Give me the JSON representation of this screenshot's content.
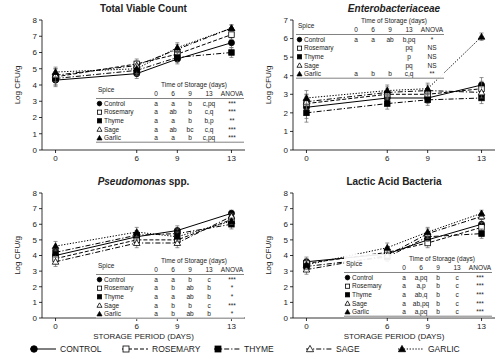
{
  "chart_data": [
    {
      "type": "line",
      "title": "Total Viable Count",
      "y_label": "Log CFU/g",
      "x": [
        0,
        6,
        9,
        13
      ],
      "xlim": [
        -1,
        14
      ],
      "xticks": [
        0,
        6,
        9,
        13
      ],
      "ylim": [
        0,
        8
      ],
      "yticks": [
        0,
        1,
        2,
        3,
        4,
        5,
        6,
        7,
        8
      ],
      "legend": "bottom",
      "series": [
        {
          "name": "CONTROL",
          "marker": "circle",
          "line_style": "solid",
          "values": [
            4.3,
            4.7,
            5.6,
            6.6
          ],
          "errors": [
            0.4,
            0.3,
            0.3,
            0.3
          ]
        },
        {
          "name": "ROSEMARY",
          "marker": "square-open",
          "line_style": "dashed",
          "values": [
            4.5,
            5.3,
            5.9,
            7.1
          ],
          "errors": [
            0.5,
            0.3,
            0.3,
            0.3
          ]
        },
        {
          "name": "THYME",
          "marker": "square",
          "line_style": "dashdot",
          "values": [
            4.4,
            4.9,
            5.7,
            6.0
          ],
          "errors": [
            0.4,
            0.3,
            0.3,
            0.3
          ]
        },
        {
          "name": "SAGE",
          "marker": "triangle-open",
          "line_style": "dashdot",
          "values": [
            4.6,
            5.2,
            6.2,
            7.5
          ],
          "errors": [
            0.4,
            0.3,
            0.3,
            0.2
          ]
        },
        {
          "name": "GARLIC",
          "marker": "triangle",
          "line_style": "dotted",
          "values": [
            4.8,
            5.0,
            6.3,
            7.5
          ],
          "errors": [
            0.3,
            0.3,
            0.3,
            0.2
          ]
        }
      ],
      "table": {
        "header": [
          "Spice",
          "Time of Storage (days)"
        ],
        "columns": [
          "0",
          "6",
          "9",
          "13",
          "ANOVA"
        ],
        "rows": [
          [
            "Control",
            "a",
            "a",
            "b",
            "c,pq",
            "***"
          ],
          [
            "Rosemary",
            "a",
            "ab",
            "b",
            "c,q",
            "***"
          ],
          [
            "Thyme",
            "a",
            "a",
            "b",
            "b,p",
            "**"
          ],
          [
            "Sage",
            "a",
            "ab",
            "bc",
            "c,q",
            "***"
          ],
          [
            "Garlic",
            "a",
            "a",
            "b",
            "c,pq",
            "***"
          ]
        ]
      }
    },
    {
      "type": "line",
      "title": "Enterobacteriaceae",
      "y_label": "Log CFU/g",
      "x": [
        0,
        6,
        9,
        13
      ],
      "xlim": [
        -1,
        14
      ],
      "xticks": [
        0,
        6,
        9,
        13
      ],
      "ylim": [
        0,
        7
      ],
      "yticks": [
        0,
        1,
        2,
        3,
        4,
        5,
        6,
        7
      ],
      "series": [
        {
          "marker": "circle",
          "line_style": "solid",
          "values": [
            2.3,
            2.8,
            2.8,
            3.5
          ],
          "errors": [
            0.6,
            0.3,
            0.3,
            0.4
          ]
        },
        {
          "marker": "square-open",
          "line_style": "dashed",
          "values": [
            2.5,
            3.0,
            3.0,
            3.3
          ],
          "errors": [
            0.5,
            0.3,
            0.3,
            0.4
          ]
        },
        {
          "marker": "square",
          "line_style": "dashdot",
          "values": [
            2.0,
            2.5,
            2.7,
            2.8
          ],
          "errors": [
            0.5,
            0.3,
            0.3,
            0.3
          ]
        },
        {
          "marker": "triangle-open",
          "line_style": "dashdot",
          "values": [
            2.6,
            3.1,
            3.2,
            3.1
          ],
          "errors": [
            0.4,
            0.3,
            0.3,
            0.3
          ]
        },
        {
          "marker": "triangle",
          "line_style": "dotted",
          "values": [
            2.8,
            3.2,
            3.3,
            6.1
          ],
          "errors": [
            0.4,
            0.3,
            0.3,
            0.2
          ]
        }
      ],
      "table": {
        "header": [
          "Spice",
          "Time of Storage (days)"
        ],
        "columns": [
          "0",
          "6",
          "9",
          "13",
          "ANOVA"
        ],
        "rows": [
          [
            "Control",
            "a",
            "a",
            "ab",
            "b,pq",
            "*"
          ],
          [
            "Rosemary",
            null,
            null,
            null,
            "pq",
            "NS"
          ],
          [
            "Thyme",
            null,
            null,
            null,
            "p",
            "NS"
          ],
          [
            "Sage",
            null,
            null,
            null,
            "pq",
            "NS"
          ],
          [
            "Garlic",
            "a",
            "b",
            "b",
            "c,q",
            "**"
          ]
        ]
      }
    },
    {
      "type": "line",
      "title": "Pseudomonas spp.",
      "y_label": "Log CFU/g",
      "x_label": "STORAGE PERIOD (DAYS)",
      "x": [
        0,
        6,
        9,
        13
      ],
      "xlim": [
        -1,
        14
      ],
      "xticks": [
        0,
        6,
        9,
        13
      ],
      "ylim": [
        0,
        8
      ],
      "yticks": [
        0,
        1,
        2,
        3,
        4,
        5,
        6,
        7,
        8
      ],
      "series": [
        {
          "marker": "circle",
          "line_style": "solid",
          "values": [
            4.0,
            5.2,
            5.6,
            6.7
          ],
          "errors": [
            0.3,
            0.3,
            0.3,
            0.2
          ]
        },
        {
          "marker": "square-open",
          "line_style": "dashed",
          "values": [
            3.8,
            5.0,
            5.0,
            6.3
          ],
          "errors": [
            0.3,
            0.3,
            0.3,
            0.3
          ]
        },
        {
          "marker": "square",
          "line_style": "dashdot",
          "values": [
            4.2,
            5.3,
            5.4,
            6.0
          ],
          "errors": [
            0.3,
            0.3,
            0.3,
            0.3
          ]
        },
        {
          "marker": "triangle-open",
          "line_style": "dashdot",
          "values": [
            3.6,
            4.8,
            4.8,
            6.5
          ],
          "errors": [
            0.3,
            0.3,
            0.3,
            0.2
          ]
        },
        {
          "marker": "triangle",
          "line_style": "dotted",
          "values": [
            4.6,
            5.5,
            5.2,
            6.2
          ],
          "errors": [
            0.3,
            0.3,
            0.3,
            0.2
          ]
        }
      ],
      "table": {
        "header": [
          "Spice",
          "Time of Storage (days)"
        ],
        "columns": [
          "0",
          "6",
          "9",
          "13",
          "ANOVA"
        ],
        "rows": [
          [
            "Control",
            "a",
            "a",
            "b",
            "c",
            "***"
          ],
          [
            "Rosemary",
            "a",
            "b",
            "ab",
            "b",
            "*"
          ],
          [
            "Thyme",
            "a",
            "a",
            "ab",
            "b",
            "*"
          ],
          [
            "Sage",
            "a",
            "b",
            "b",
            "c",
            "***"
          ],
          [
            "Garlic",
            "a",
            "b",
            "ab",
            "b",
            "*"
          ]
        ]
      }
    },
    {
      "type": "line",
      "title": "Lactic Acid Bacteria",
      "y_label": "Log CFU/g",
      "x_label": "STORAGE PERIOD (DAYS)",
      "x": [
        0,
        6,
        9,
        13
      ],
      "xlim": [
        -1,
        14
      ],
      "xticks": [
        0,
        6,
        9,
        13
      ],
      "ylim": [
        0,
        8
      ],
      "yticks": [
        0,
        1,
        2,
        3,
        4,
        5,
        6,
        7,
        8
      ],
      "series": [
        {
          "marker": "circle",
          "line_style": "solid",
          "values": [
            3.6,
            4.1,
            5.0,
            6.0
          ],
          "errors": [
            0.3,
            0.3,
            0.3,
            0.3
          ]
        },
        {
          "marker": "square-open",
          "line_style": "dashed",
          "values": [
            3.5,
            4.2,
            4.8,
            5.8
          ],
          "errors": [
            0.3,
            0.3,
            0.3,
            0.3
          ]
        },
        {
          "marker": "square",
          "line_style": "dashdot",
          "values": [
            3.3,
            3.9,
            5.2,
            5.4
          ],
          "errors": [
            0.3,
            0.3,
            0.3,
            0.3
          ]
        },
        {
          "marker": "triangle-open",
          "line_style": "dashdot",
          "values": [
            3.1,
            4.0,
            5.4,
            6.5
          ],
          "errors": [
            0.3,
            0.3,
            0.3,
            0.2
          ]
        },
        {
          "marker": "triangle",
          "line_style": "dotted",
          "values": [
            3.4,
            4.5,
            5.5,
            6.7
          ],
          "errors": [
            0.3,
            0.3,
            0.3,
            0.2
          ]
        }
      ],
      "table": {
        "header": [
          "Spice",
          "Time of Storage (days)"
        ],
        "columns": [
          "0",
          "6",
          "9",
          "13",
          "ANOVA"
        ],
        "rows": [
          [
            "Control",
            "a",
            "a,pq",
            "b",
            "c",
            "***"
          ],
          [
            "Rosemary",
            "a",
            "a,p",
            "b",
            "c",
            "***"
          ],
          [
            "Thyme",
            "a",
            "ab,q",
            "b",
            "c",
            "***"
          ],
          [
            "Sage",
            "a",
            "ab,pq",
            "b",
            "c",
            "***"
          ],
          [
            "Garlic",
            "a",
            "a,pq",
            "b",
            "c",
            "***"
          ]
        ]
      }
    }
  ]
}
